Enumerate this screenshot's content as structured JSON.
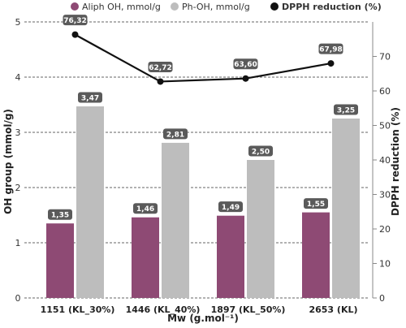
{
  "chart_data": {
    "type": "bar",
    "categories": [
      "1151 (KL_30%)",
      "1446 (KL_40%)",
      "1897 (KL_50%)",
      "2653 (KL)"
    ],
    "series": [
      {
        "name": "Aliph OH, mmol/g",
        "type": "bar",
        "axis": "left",
        "color": "#8e4a74",
        "values": [
          1.35,
          1.46,
          1.49,
          1.55
        ],
        "labels": [
          "1,35",
          "1,46",
          "1,49",
          "1,55"
        ]
      },
      {
        "name": "Ph-OH, mmol/g",
        "type": "bar",
        "axis": "left",
        "color": "#bdbdbd",
        "values": [
          3.47,
          2.81,
          2.5,
          3.25
        ],
        "labels": [
          "3,47",
          "2,81",
          "2,50",
          "3,25"
        ]
      },
      {
        "name": "DPPH reduction (%)",
        "type": "line",
        "axis": "right",
        "color": "#111111",
        "values": [
          76.32,
          62.72,
          63.6,
          67.98
        ],
        "labels": [
          "76,32",
          "62,72",
          "63,60",
          "67,98"
        ]
      }
    ],
    "xlabel": "Mw (g.mol⁻¹)",
    "ylabel": "OH group (mmol/g)",
    "y2label": "DPPH reduction (%)",
    "ylim": [
      0,
      5
    ],
    "y2lim": [
      0,
      80
    ],
    "yticks": [
      "0",
      "1",
      "2",
      "3",
      "4",
      "5"
    ],
    "y2ticks": [
      "0",
      "10",
      "20",
      "30",
      "40",
      "50",
      "60",
      "70"
    ],
    "legend": "top",
    "grid": "horizontal dashed"
  }
}
